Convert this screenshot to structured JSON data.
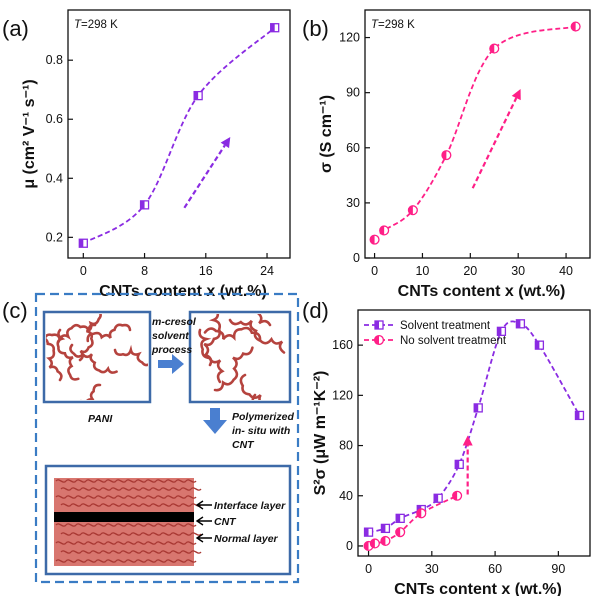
{
  "panel_labels": {
    "a": "(a)",
    "b": "(b)",
    "c": "(c)",
    "d": "(d)"
  },
  "colors": {
    "purple": "#8a2be2",
    "pink": "#ff1f87",
    "frame_blue": "#3a7cc4",
    "panel_blue": "#3d6aa8",
    "fiber": "#b5433e",
    "arrow_blue": "#4a7fd0"
  },
  "chart_data": [
    {
      "id": "a",
      "type": "scatter",
      "title": "",
      "annotation_T": "T",
      "annotation_rest": "=298 K",
      "xlabel": "CNTs content x (wt.%)",
      "ylabel": "μ (cm² V⁻¹ s⁻¹)",
      "xlim": [
        -2,
        27
      ],
      "ylim": [
        0.13,
        0.97
      ],
      "xticks": [
        0,
        8,
        16,
        24
      ],
      "yticks": [
        0.2,
        0.4,
        0.6,
        0.8
      ],
      "series": [
        {
          "color": "purple",
          "marker": "square-half",
          "x": [
            0,
            8,
            15,
            25
          ],
          "y": [
            0.18,
            0.31,
            0.68,
            0.91
          ]
        }
      ],
      "trend_arrow": {
        "from": [
          13.2,
          0.3
        ],
        "to": [
          19.2,
          0.54
        ]
      }
    },
    {
      "id": "b",
      "type": "scatter",
      "title": "",
      "annotation_T": "T",
      "annotation_rest": "=298 K",
      "xlabel": "CNTs content x (wt.%)",
      "ylabel": "σ (S cm⁻¹)",
      "xlim": [
        -2,
        45
      ],
      "ylim": [
        0,
        135
      ],
      "xticks": [
        0,
        10,
        20,
        30,
        40
      ],
      "yticks": [
        0,
        30,
        60,
        90,
        120
      ],
      "series": [
        {
          "color": "pink",
          "marker": "circle-half",
          "x": [
            0,
            2,
            8,
            15,
            25,
            42
          ],
          "y": [
            10,
            15,
            26,
            56,
            114,
            126
          ]
        }
      ],
      "trend_arrow": {
        "from": [
          20.5,
          38
        ],
        "to": [
          30.5,
          92
        ]
      }
    },
    {
      "id": "d",
      "type": "scatter",
      "title": "",
      "xlabel": "CNTs content x (wt.%)",
      "ylabel": "S²σ (μW m⁻¹K⁻²)",
      "xlim": [
        -5,
        105
      ],
      "ylim": [
        -8,
        188
      ],
      "xticks": [
        0,
        30,
        60,
        90
      ],
      "yticks": [
        0,
        40,
        80,
        120,
        160
      ],
      "legend": "top-left",
      "series": [
        {
          "name": "Solvent treatment",
          "color": "purple",
          "marker": "square-half",
          "x": [
            0,
            8,
            15,
            25,
            33,
            43,
            52,
            63,
            72,
            81,
            100
          ],
          "y": [
            11,
            14,
            22,
            29,
            38,
            65,
            110,
            171,
            177,
            160,
            104
          ]
        },
        {
          "name": "No solvent treatment",
          "color": "pink",
          "marker": "circle-half",
          "x": [
            0,
            3,
            8,
            15,
            25,
            42
          ],
          "y": [
            0,
            2,
            4,
            11,
            26,
            40
          ]
        }
      ],
      "trend_arrow": {
        "from": [
          47,
          41
        ],
        "to": [
          47,
          88
        ]
      }
    }
  ],
  "schematic": {
    "solvent_label_lines": [
      "m-cresol",
      "solvent",
      "process"
    ],
    "pani_label": "PANI",
    "polymerized_label_lines": [
      "Polymerized",
      "in- situ with",
      "CNT"
    ],
    "layer_labels": [
      "Interface layer",
      "CNT",
      "Normal layer"
    ]
  }
}
